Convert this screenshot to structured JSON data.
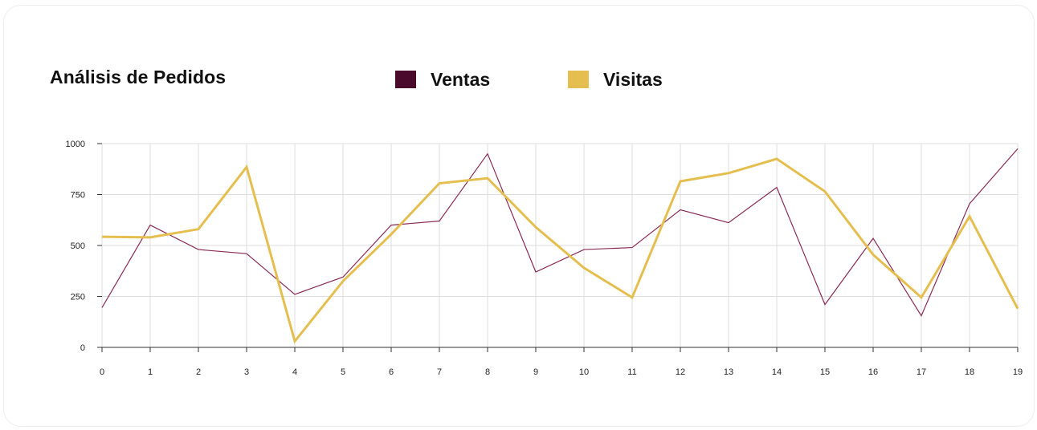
{
  "card": {
    "title": "Análisis de Pedidos"
  },
  "legend": [
    {
      "label": "Ventas",
      "color": "#4a0a2c"
    },
    {
      "label": "Visitas",
      "color": "#e4bf50"
    }
  ],
  "chart_data": {
    "type": "line",
    "title": "Análisis de Pedidos",
    "xlabel": "",
    "ylabel": "",
    "x": [
      0,
      1,
      2,
      3,
      4,
      5,
      6,
      7,
      8,
      9,
      10,
      11,
      12,
      13,
      14,
      15,
      16,
      17,
      18,
      19
    ],
    "xlim": [
      0,
      19
    ],
    "ylim": [
      0,
      1000
    ],
    "yticks": [
      0,
      250,
      500,
      750,
      1000
    ],
    "grid": true,
    "legend_position": "top",
    "series": [
      {
        "name": "Ventas",
        "color": "#8a2a57",
        "line_width": "thin",
        "values": [
          195,
          600,
          480,
          460,
          260,
          345,
          600,
          620,
          950,
          370,
          480,
          490,
          675,
          612,
          785,
          210,
          535,
          155,
          705,
          975
        ]
      },
      {
        "name": "Visitas",
        "color": "#e4bf50",
        "line_width": "thick",
        "values": [
          543,
          540,
          580,
          885,
          30,
          325,
          555,
          805,
          830,
          590,
          390,
          245,
          815,
          855,
          925,
          765,
          455,
          245,
          643,
          190
        ]
      }
    ]
  }
}
